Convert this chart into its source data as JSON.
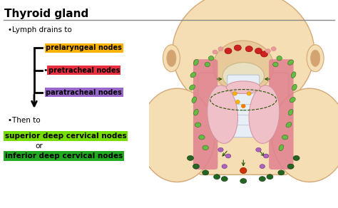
{
  "title": "Thyroid gland",
  "bg_color": "#ffffff",
  "lymph_label": "•Lymph drains to",
  "then_label": "•Then to",
  "nodes": [
    {
      "text": "prelaryngeal nodes",
      "bg": "#FFB300",
      "text_color": "#000000"
    },
    {
      "text": "pretracheal nodes",
      "bg": "#E83040",
      "text_color": "#000000"
    },
    {
      "text": "paratracheal nodes",
      "bg": "#9966CC",
      "text_color": "#000000"
    }
  ],
  "deep_nodes": [
    {
      "text": "superior deep cervical nodes",
      "bg": "#77DD00",
      "text_color": "#000000"
    },
    {
      "text": "inferior deep cervical nodes",
      "bg": "#22AA22",
      "text_color": "#000000"
    }
  ],
  "or_text": "or",
  "skin_color": "#F5DEB3",
  "skin_edge": "#D4A876",
  "pink_tissue": "#F4A0A8",
  "thyroid_blue": "#C8E0F0",
  "thyroid_edge": "#90B8CC",
  "green_light": "#66BB44",
  "green_dark": "#226622",
  "green_mid": "#338833",
  "purple_node": "#AA66BB",
  "red_node": "#CC2222",
  "pink_node": "#EE9999",
  "orange_node": "#FF9900",
  "red_orange": "#CC4400",
  "arrow_green": "#225500"
}
